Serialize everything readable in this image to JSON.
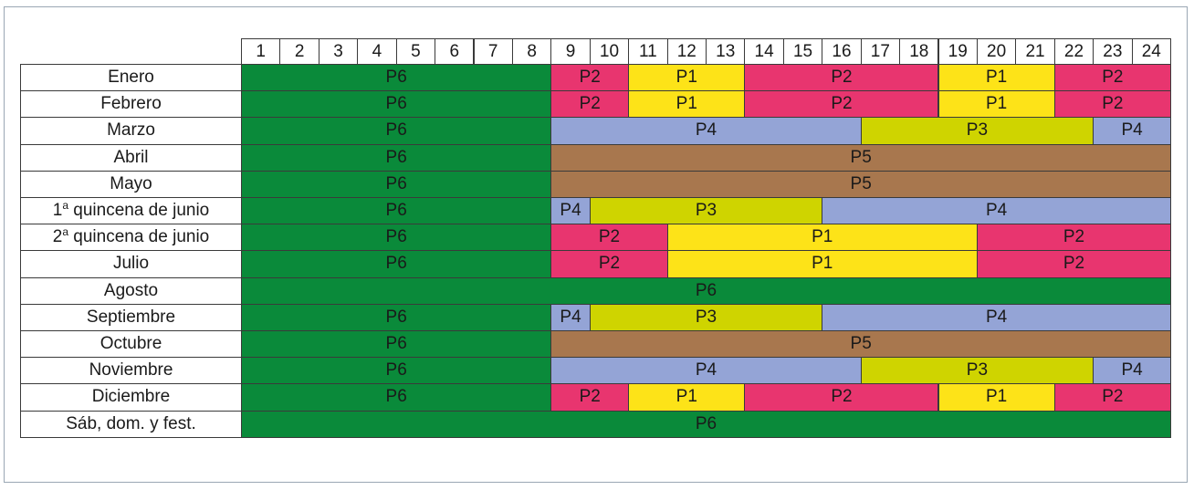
{
  "hours": [
    "1",
    "2",
    "3",
    "4",
    "5",
    "6",
    "7",
    "8",
    "9",
    "10",
    "11",
    "12",
    "13",
    "14",
    "15",
    "16",
    "17",
    "18",
    "19",
    "20",
    "21",
    "22",
    "23",
    "24"
  ],
  "periods": {
    "P1": {
      "label": "P1",
      "color": "#fde318"
    },
    "P2": {
      "label": "P2",
      "color": "#e8356f"
    },
    "P3": {
      "label": "P3",
      "color": "#cfd400"
    },
    "P4": {
      "label": "P4",
      "color": "#94a4d6"
    },
    "P5": {
      "label": "P5",
      "color": "#a8774e"
    },
    "P6": {
      "label": "P6",
      "color": "#0a8a3a"
    }
  },
  "rows": [
    {
      "label": "Enero",
      "segments": [
        {
          "start": 1,
          "end": 8,
          "period": "P6"
        },
        {
          "start": 9,
          "end": 10,
          "period": "P2"
        },
        {
          "start": 11,
          "end": 13,
          "period": "P1"
        },
        {
          "start": 14,
          "end": 18,
          "period": "P2"
        },
        {
          "start": 19,
          "end": 21,
          "period": "P1"
        },
        {
          "start": 22,
          "end": 24,
          "period": "P2"
        }
      ]
    },
    {
      "label": "Febrero",
      "segments": [
        {
          "start": 1,
          "end": 8,
          "period": "P6"
        },
        {
          "start": 9,
          "end": 10,
          "period": "P2"
        },
        {
          "start": 11,
          "end": 13,
          "period": "P1"
        },
        {
          "start": 14,
          "end": 18,
          "period": "P2"
        },
        {
          "start": 19,
          "end": 21,
          "period": "P1"
        },
        {
          "start": 22,
          "end": 24,
          "period": "P2"
        }
      ]
    },
    {
      "label": "Marzo",
      "segments": [
        {
          "start": 1,
          "end": 8,
          "period": "P6"
        },
        {
          "start": 9,
          "end": 16,
          "period": "P4"
        },
        {
          "start": 17,
          "end": 22,
          "period": "P3"
        },
        {
          "start": 23,
          "end": 24,
          "period": "P4"
        }
      ]
    },
    {
      "label": "Abril",
      "segments": [
        {
          "start": 1,
          "end": 8,
          "period": "P6"
        },
        {
          "start": 9,
          "end": 24,
          "period": "P5"
        }
      ]
    },
    {
      "label": "Mayo",
      "segments": [
        {
          "start": 1,
          "end": 8,
          "period": "P6"
        },
        {
          "start": 9,
          "end": 24,
          "period": "P5"
        }
      ]
    },
    {
      "label_prefix": "1",
      "label_sup": "a",
      "label": " quincena de junio",
      "segments": [
        {
          "start": 1,
          "end": 8,
          "period": "P6"
        },
        {
          "start": 9,
          "end": 9,
          "period": "P4"
        },
        {
          "start": 10,
          "end": 15,
          "period": "P3"
        },
        {
          "start": 16,
          "end": 24,
          "period": "P4"
        }
      ]
    },
    {
      "label_prefix": "2",
      "label_sup": "a",
      "label": " quincena de junio",
      "segments": [
        {
          "start": 1,
          "end": 8,
          "period": "P6"
        },
        {
          "start": 9,
          "end": 11,
          "period": "P2"
        },
        {
          "start": 12,
          "end": 19,
          "period": "P1"
        },
        {
          "start": 20,
          "end": 24,
          "period": "P2"
        }
      ]
    },
    {
      "label": "Julio",
      "segments": [
        {
          "start": 1,
          "end": 8,
          "period": "P6"
        },
        {
          "start": 9,
          "end": 11,
          "period": "P2"
        },
        {
          "start": 12,
          "end": 19,
          "period": "P1"
        },
        {
          "start": 20,
          "end": 24,
          "period": "P2"
        }
      ]
    },
    {
      "label": "Agosto",
      "segments": [
        {
          "start": 1,
          "end": 24,
          "period": "P6"
        }
      ]
    },
    {
      "label": "Septiembre",
      "segments": [
        {
          "start": 1,
          "end": 8,
          "period": "P6"
        },
        {
          "start": 9,
          "end": 9,
          "period": "P4"
        },
        {
          "start": 10,
          "end": 15,
          "period": "P3"
        },
        {
          "start": 16,
          "end": 24,
          "period": "P4"
        }
      ]
    },
    {
      "label": "Octubre",
      "segments": [
        {
          "start": 1,
          "end": 8,
          "period": "P6"
        },
        {
          "start": 9,
          "end": 24,
          "period": "P5"
        }
      ]
    },
    {
      "label": "Noviembre",
      "segments": [
        {
          "start": 1,
          "end": 8,
          "period": "P6"
        },
        {
          "start": 9,
          "end": 16,
          "period": "P4"
        },
        {
          "start": 17,
          "end": 22,
          "period": "P3"
        },
        {
          "start": 23,
          "end": 24,
          "period": "P4"
        }
      ]
    },
    {
      "label": "Diciembre",
      "segments": [
        {
          "start": 1,
          "end": 8,
          "period": "P6"
        },
        {
          "start": 9,
          "end": 10,
          "period": "P2"
        },
        {
          "start": 11,
          "end": 13,
          "period": "P1"
        },
        {
          "start": 14,
          "end": 18,
          "period": "P2"
        },
        {
          "start": 19,
          "end": 21,
          "period": "P1"
        },
        {
          "start": 22,
          "end": 24,
          "period": "P2"
        }
      ]
    },
    {
      "label": "Sáb, dom. y fest.",
      "segments": [
        {
          "start": 1,
          "end": 24,
          "period": "P6"
        }
      ]
    }
  ]
}
